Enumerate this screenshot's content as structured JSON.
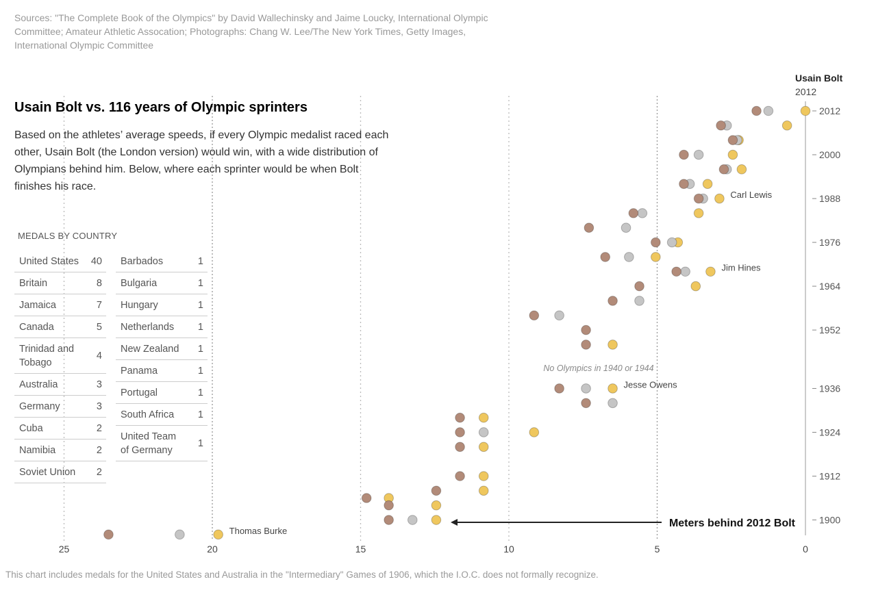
{
  "sources": "Sources: \"The Complete Book of the Olympics\" by David Wallechinsky and Jaime Loucky, International Olympic Committee; Amateur Athletic Assocation; Photographs: Chang W. Lee/The New York Times, Getty Images, International Olympic Committee",
  "headline": "Usain Bolt vs. 116 years of Olympic sprinters",
  "deck": "Based on the athletes’ average speeds, if every Olympic medalist raced each other, Usain Bolt (the London version) would win, with a wide distribution of Olympians behind him. Below, where each sprinter would be when Bolt finishes his race.",
  "medals": {
    "title": "MEDALS BY COUNTRY",
    "col1": [
      {
        "country": "United States",
        "count": "40"
      },
      {
        "country": "Britain",
        "count": "8"
      },
      {
        "country": "Jamaica",
        "count": "7"
      },
      {
        "country": "Canada",
        "count": "5"
      },
      {
        "country": "Trinidad and Tobago",
        "count": "4"
      },
      {
        "country": "Australia",
        "count": "3"
      },
      {
        "country": "Germany",
        "count": "3"
      },
      {
        "country": "Cuba",
        "count": "2"
      },
      {
        "country": "Namibia",
        "count": "2"
      },
      {
        "country": "Soviet Union",
        "count": "2"
      }
    ],
    "col2": [
      {
        "country": "Barbados",
        "count": "1"
      },
      {
        "country": "Bulgaria",
        "count": "1"
      },
      {
        "country": "Hungary",
        "count": "1"
      },
      {
        "country": "Netherlands",
        "count": "1"
      },
      {
        "country": "New Zealand",
        "count": "1"
      },
      {
        "country": "Panama",
        "count": "1"
      },
      {
        "country": "Portugal",
        "count": "1"
      },
      {
        "country": "South Africa",
        "count": "1"
      },
      {
        "country": "United Team of Germany",
        "count": "1"
      }
    ]
  },
  "footnote": "This chart includes medals for the United States and Australia in the \"Intermediary\" Games of 1906, which the I.O.C. does not formally recognize.",
  "chart_data": {
    "type": "scatter",
    "xlabel": "Meters behind 2012 Bolt",
    "x_ticks": [
      25,
      20,
      15,
      10,
      5,
      0
    ],
    "x_range": [
      25,
      0
    ],
    "y_ticks": [
      2012,
      2000,
      1988,
      1976,
      1964,
      1952,
      1936,
      1924,
      1912,
      1900
    ],
    "y_range": [
      1896,
      2012
    ],
    "note": "No Olympics in 1940 or 1944",
    "bolt_label": {
      "name": "Usain Bolt",
      "year": "2012"
    },
    "colors": {
      "gold": "#efc75e",
      "silver": "#c5c5c5",
      "bronze": "#b28b79"
    },
    "annotations": [
      {
        "text": "Carl Lewis",
        "year": 1988,
        "x": 2.9
      },
      {
        "text": "Jim Hines",
        "year": 1968,
        "x": 3.2
      },
      {
        "text": "Jesse Owens",
        "year": 1936,
        "x": 6.5
      },
      {
        "text": "Thomas Burke",
        "year": 1896,
        "x": 19.8
      }
    ],
    "points": [
      {
        "year": 2012,
        "medal": "gold",
        "x": 0.0
      },
      {
        "year": 2012,
        "medal": "silver",
        "x": 1.25
      },
      {
        "year": 2012,
        "medal": "bronze",
        "x": 1.65
      },
      {
        "year": 2008,
        "medal": "gold",
        "x": 0.62
      },
      {
        "year": 2008,
        "medal": "silver",
        "x": 2.65
      },
      {
        "year": 2008,
        "medal": "bronze",
        "x": 2.85
      },
      {
        "year": 2004,
        "medal": "gold",
        "x": 2.25
      },
      {
        "year": 2004,
        "medal": "silver",
        "x": 2.3
      },
      {
        "year": 2004,
        "medal": "bronze",
        "x": 2.45
      },
      {
        "year": 2000,
        "medal": "gold",
        "x": 2.45
      },
      {
        "year": 2000,
        "medal": "silver",
        "x": 3.6
      },
      {
        "year": 2000,
        "medal": "bronze",
        "x": 4.1
      },
      {
        "year": 1996,
        "medal": "gold",
        "x": 2.15
      },
      {
        "year": 1996,
        "medal": "silver",
        "x": 2.65
      },
      {
        "year": 1996,
        "medal": "bronze",
        "x": 2.75
      },
      {
        "year": 1992,
        "medal": "gold",
        "x": 3.3
      },
      {
        "year": 1992,
        "medal": "silver",
        "x": 3.9
      },
      {
        "year": 1992,
        "medal": "bronze",
        "x": 4.1
      },
      {
        "year": 1988,
        "medal": "gold",
        "x": 2.9
      },
      {
        "year": 1988,
        "medal": "silver",
        "x": 3.45
      },
      {
        "year": 1988,
        "medal": "bronze",
        "x": 3.6
      },
      {
        "year": 1984,
        "medal": "gold",
        "x": 3.6
      },
      {
        "year": 1984,
        "medal": "silver",
        "x": 5.5
      },
      {
        "year": 1984,
        "medal": "bronze",
        "x": 5.8
      },
      {
        "year": 1980,
        "medal": "silver",
        "x": 6.05
      },
      {
        "year": 1980,
        "medal": "bronze",
        "x": 7.3
      },
      {
        "year": 1976,
        "medal": "gold",
        "x": 4.3
      },
      {
        "year": 1976,
        "medal": "silver",
        "x": 4.5
      },
      {
        "year": 1976,
        "medal": "bronze",
        "x": 5.05
      },
      {
        "year": 1972,
        "medal": "gold",
        "x": 5.05
      },
      {
        "year": 1972,
        "medal": "silver",
        "x": 5.95
      },
      {
        "year": 1972,
        "medal": "bronze",
        "x": 6.75
      },
      {
        "year": 1968,
        "medal": "gold",
        "x": 3.2
      },
      {
        "year": 1968,
        "medal": "silver",
        "x": 4.05
      },
      {
        "year": 1968,
        "medal": "bronze",
        "x": 4.35
      },
      {
        "year": 1964,
        "medal": "gold",
        "x": 3.7
      },
      {
        "year": 1964,
        "medal": "bronze",
        "x": 5.6
      },
      {
        "year": 1960,
        "medal": "silver",
        "x": 5.6
      },
      {
        "year": 1960,
        "medal": "bronze",
        "x": 6.5
      },
      {
        "year": 1956,
        "medal": "silver",
        "x": 8.3
      },
      {
        "year": 1956,
        "medal": "bronze",
        "x": 9.15
      },
      {
        "year": 1952,
        "medal": "bronze",
        "x": 7.4
      },
      {
        "year": 1948,
        "medal": "gold",
        "x": 6.5
      },
      {
        "year": 1948,
        "medal": "bronze",
        "x": 7.4
      },
      {
        "year": 1936,
        "medal": "gold",
        "x": 6.5
      },
      {
        "year": 1936,
        "medal": "silver",
        "x": 7.4
      },
      {
        "year": 1936,
        "medal": "bronze",
        "x": 8.3
      },
      {
        "year": 1932,
        "medal": "silver",
        "x": 6.5
      },
      {
        "year": 1932,
        "medal": "bronze",
        "x": 7.4
      },
      {
        "year": 1928,
        "medal": "gold",
        "x": 10.85
      },
      {
        "year": 1928,
        "medal": "bronze",
        "x": 11.65
      },
      {
        "year": 1924,
        "medal": "gold",
        "x": 9.15
      },
      {
        "year": 1924,
        "medal": "silver",
        "x": 10.85
      },
      {
        "year": 1924,
        "medal": "bronze",
        "x": 11.65
      },
      {
        "year": 1920,
        "medal": "gold",
        "x": 10.85
      },
      {
        "year": 1920,
        "medal": "bronze",
        "x": 11.65
      },
      {
        "year": 1912,
        "medal": "gold",
        "x": 10.85
      },
      {
        "year": 1912,
        "medal": "bronze",
        "x": 11.65
      },
      {
        "year": 1908,
        "medal": "gold",
        "x": 10.85
      },
      {
        "year": 1908,
        "medal": "bronze",
        "x": 12.45
      },
      {
        "year": 1906,
        "medal": "gold",
        "x": 14.05
      },
      {
        "year": 1906,
        "medal": "bronze",
        "x": 14.8
      },
      {
        "year": 1904,
        "medal": "gold",
        "x": 12.45
      },
      {
        "year": 1904,
        "medal": "bronze",
        "x": 14.05
      },
      {
        "year": 1900,
        "medal": "gold",
        "x": 12.45
      },
      {
        "year": 1900,
        "medal": "silver",
        "x": 13.25
      },
      {
        "year": 1900,
        "medal": "bronze",
        "x": 14.05
      },
      {
        "year": 1896,
        "medal": "gold",
        "x": 19.8
      },
      {
        "year": 1896,
        "medal": "silver",
        "x": 21.1
      },
      {
        "year": 1896,
        "medal": "bronze",
        "x": 23.5
      }
    ]
  }
}
